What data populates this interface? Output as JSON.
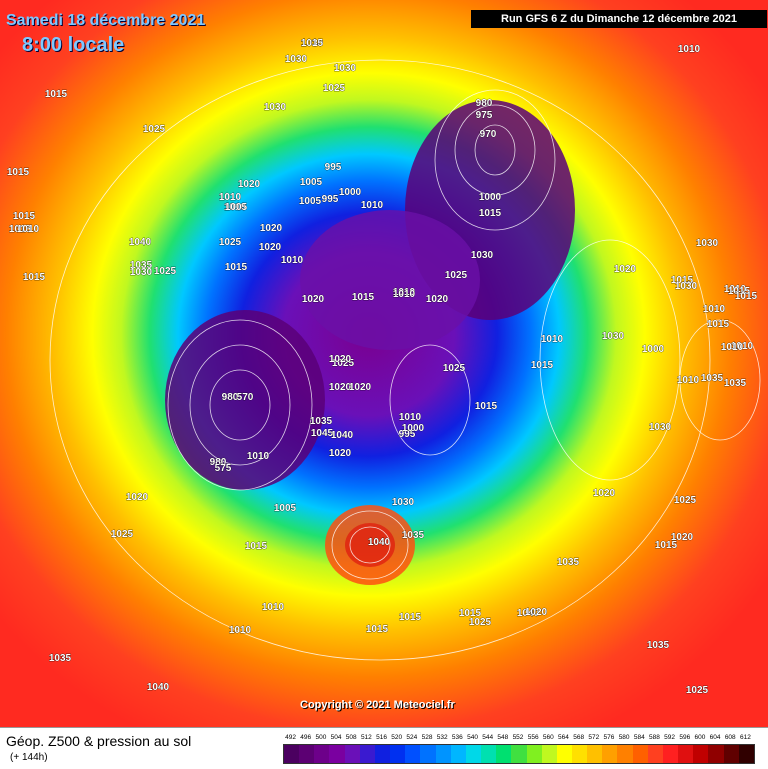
{
  "header": {
    "date": "Samedi 18 décembre 2021",
    "time": "8:00 locale",
    "run": "Run GFS 6 Z du Dimanche 12 décembre 2021"
  },
  "copyright": "Copyright © 2021 Meteociel.fr",
  "legend": {
    "title": "Géop. Z500 & pression au sol",
    "subtitle": "(+ 144h)",
    "scale_values": [
      "492",
      "496",
      "500",
      "504",
      "508",
      "512",
      "516",
      "520",
      "524",
      "528",
      "532",
      "536",
      "540",
      "544",
      "548",
      "552",
      "556",
      "560",
      "564",
      "568",
      "572",
      "576",
      "580",
      "584",
      "588",
      "592",
      "596",
      "600",
      "604",
      "608",
      "612"
    ],
    "scale_colors": [
      "#4b0060",
      "#5c0073",
      "#6d008a",
      "#7a00a0",
      "#6a10b8",
      "#3a1ad0",
      "#1020e0",
      "#0030f0",
      "#0050ff",
      "#0072ff",
      "#0094ff",
      "#00b6ff",
      "#00d8e8",
      "#00e0b0",
      "#00e070",
      "#40e040",
      "#80f020",
      "#c0f820",
      "#ffff00",
      "#ffe000",
      "#ffc000",
      "#ffa000",
      "#ff8000",
      "#ff6000",
      "#ff4020",
      "#ff2020",
      "#e01010",
      "#c00000",
      "#900000",
      "#600000",
      "#300000"
    ]
  },
  "pressure_labels": [
    "1030",
    "1030",
    "1030",
    "1025",
    "1030",
    "1025",
    "1015",
    "1015",
    "1015",
    "1015",
    "1020",
    "1010",
    "1005",
    "995",
    "1000",
    "995",
    "1010",
    "1010",
    "1005",
    "1040",
    "1035",
    "1030",
    "1025",
    "1025",
    "1020",
    "1015",
    "1010",
    "1020",
    "1015",
    "1010",
    "980",
    "975",
    "970",
    "1000",
    "1015",
    "1030",
    "1025",
    "1020",
    "1010",
    "1010",
    "1005",
    "1015",
    "1020",
    "1025",
    "1020",
    "980",
    "570",
    "1020",
    "1020",
    "1035",
    "1045",
    "1040",
    "1020",
    "995",
    "1000",
    "1010",
    "980",
    "575",
    "1010",
    "1005",
    "1015",
    "1020",
    "1025",
    "1030",
    "1040",
    "1035",
    "1015",
    "1010",
    "1015",
    "1025",
    "1020",
    "1010",
    "1030",
    "1015",
    "1015",
    "1010",
    "1030",
    "1010",
    "1000",
    "1010",
    "1030",
    "1035",
    "1035",
    "1030",
    "1025",
    "1020",
    "1015",
    "1020",
    "1035",
    "1040",
    "1015",
    "1025",
    "1020",
    "1015",
    "1015",
    "1010",
    "1010",
    "1035",
    "1040",
    "1035",
    "1025",
    "1015",
    "1015",
    "1010",
    "1010",
    "1015"
  ]
}
